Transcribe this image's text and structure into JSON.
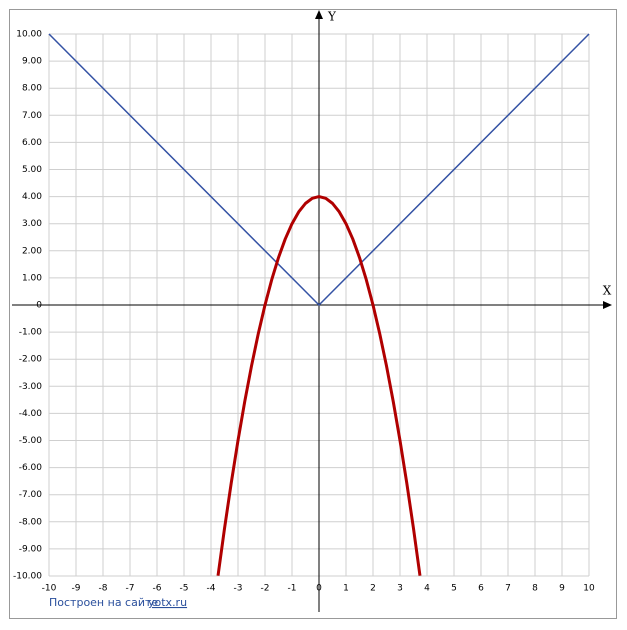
{
  "chart_data": {
    "type": "line",
    "x_label": "X",
    "y_label": "Y",
    "xlim": [
      -10,
      10
    ],
    "ylim": [
      -10,
      10
    ],
    "xticks": [
      -10,
      -9,
      -8,
      -7,
      -6,
      -5,
      -4,
      -3,
      -2,
      -1,
      0,
      1,
      2,
      3,
      4,
      5,
      6,
      7,
      8,
      9,
      10
    ],
    "yticks": [
      {
        "value": 10,
        "label": "10.00"
      },
      {
        "value": 9,
        "label": "9.00"
      },
      {
        "value": 8,
        "label": "8.00"
      },
      {
        "value": 7,
        "label": "7.00"
      },
      {
        "value": 6,
        "label": "6.00"
      },
      {
        "value": 5,
        "label": "5.00"
      },
      {
        "value": 4,
        "label": "4.00"
      },
      {
        "value": 3,
        "label": "3.00"
      },
      {
        "value": 2,
        "label": "2.00"
      },
      {
        "value": 1,
        "label": "1.00"
      },
      0,
      {
        "value": -1,
        "label": "-1.00"
      },
      {
        "value": -2,
        "label": "-2.00"
      },
      {
        "value": -3,
        "label": "-3.00"
      },
      {
        "value": -4,
        "label": "-4.00"
      },
      {
        "value": -5,
        "label": "-5.00"
      },
      {
        "value": -6,
        "label": "-6.00"
      },
      {
        "value": -7,
        "label": "-7.00"
      },
      {
        "value": -8,
        "label": "-8.00"
      },
      {
        "value": -9,
        "label": "-9.00"
      },
      {
        "value": -10,
        "label": "-10.00"
      }
    ],
    "grid": true,
    "series": [
      {
        "color": "#3452a4",
        "x": [
          -10,
          0,
          10
        ],
        "values": [
          10,
          0,
          10
        ]
      },
      {
        "color": "#b00000",
        "x": [
          -3.74,
          -3.5,
          -3.25,
          -3,
          -2.75,
          -2.5,
          -2.25,
          -2,
          -1.75,
          -1.5,
          -1.25,
          -1,
          -0.75,
          -0.5,
          -0.25,
          0,
          0.25,
          0.5,
          0.75,
          1,
          1.25,
          1.5,
          1.75,
          2,
          2.25,
          2.5,
          2.75,
          3,
          3.25,
          3.5,
          3.74
        ],
        "values": [
          -9.99,
          -8.25,
          -6.5625,
          -5,
          -3.5625,
          -2.25,
          -1.0625,
          0,
          0.9375,
          1.75,
          2.4375,
          3,
          3.4375,
          3.75,
          3.9375,
          4,
          3.9375,
          3.75,
          3.4375,
          3,
          2.4375,
          1.75,
          0.9375,
          0,
          -1.0625,
          -2.25,
          -3.5625,
          -5,
          -6.5625,
          -8.25,
          -9.99
        ]
      }
    ]
  },
  "footer": {
    "text": "Построен на сайте",
    "link": "yotx.ru"
  }
}
